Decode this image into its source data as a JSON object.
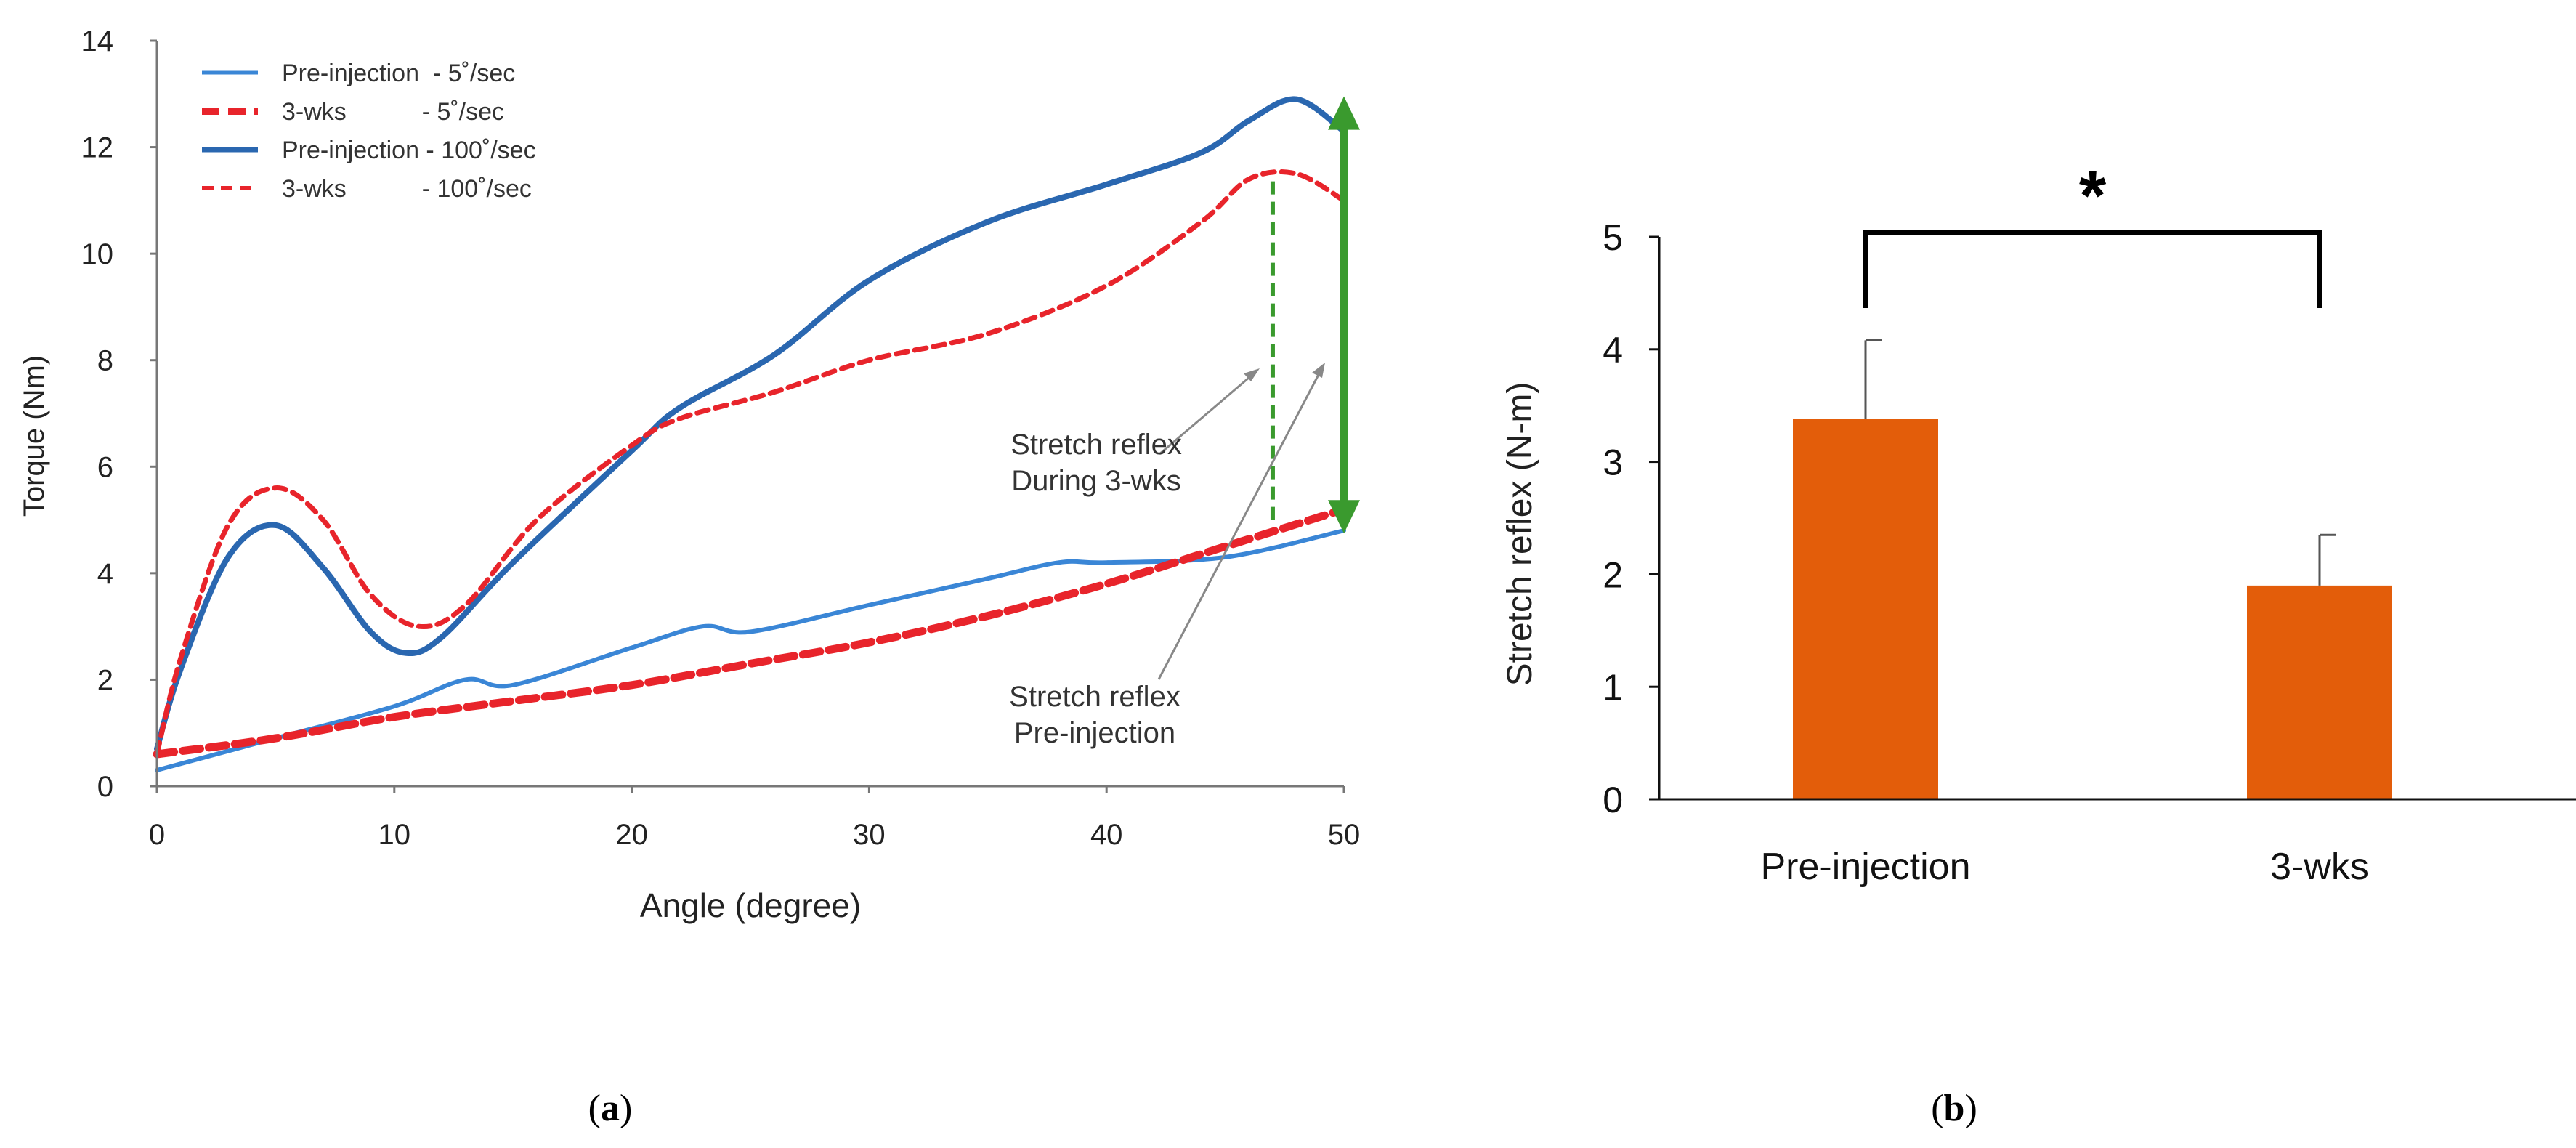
{
  "chart_data": [
    {
      "type": "line",
      "panel": "a",
      "panel_label": "(a)",
      "panel_letter": "a",
      "title": "",
      "xlabel": "Angle (degree)",
      "ylabel": "Torque (Nm)",
      "xlim": [
        0,
        50
      ],
      "ylim": [
        0,
        14
      ],
      "xticks": [
        0,
        10,
        20,
        30,
        40,
        50
      ],
      "yticks": [
        0,
        2,
        4,
        6,
        8,
        10,
        12,
        14
      ],
      "grid": false,
      "legend_position": "top-left",
      "colors": {
        "blue": "#2a67b0",
        "light_blue": "#3a86d6",
        "red": "#e8242b",
        "green": "#3a9a2e"
      },
      "series": [
        {
          "name": "Pre-injection  - 5˚/sec",
          "style": "thin-solid-blue",
          "x": [
            0,
            5,
            10,
            13,
            15,
            20,
            23,
            25,
            30,
            35,
            38,
            40,
            45,
            50
          ],
          "y": [
            0.3,
            0.9,
            1.5,
            2.0,
            1.9,
            2.6,
            3.0,
            2.9,
            3.4,
            3.9,
            4.2,
            4.2,
            4.3,
            4.8
          ]
        },
        {
          "name": "3-wks           - 5˚/sec",
          "style": "thick-dashed-red",
          "x": [
            0,
            5,
            10,
            15,
            20,
            25,
            30,
            35,
            40,
            45,
            50
          ],
          "y": [
            0.6,
            0.9,
            1.3,
            1.6,
            1.9,
            2.3,
            2.7,
            3.2,
            3.8,
            4.5,
            5.2
          ]
        },
        {
          "name": "Pre-injection - 100˚/sec",
          "style": "thick-solid-blue",
          "x": [
            0,
            1,
            3,
            5,
            7,
            9,
            10.5,
            12,
            15,
            20,
            22,
            26,
            30,
            35,
            40,
            44,
            46,
            48,
            50
          ],
          "y": [
            0.7,
            2.2,
            4.3,
            4.9,
            4.1,
            2.9,
            2.5,
            2.8,
            4.2,
            6.3,
            7.1,
            8.1,
            9.5,
            10.6,
            11.3,
            11.9,
            12.5,
            12.9,
            12.3
          ]
        },
        {
          "name": "3-wks           - 100˚/sec",
          "style": "dashed-red",
          "x": [
            0,
            1,
            3,
            5,
            7,
            9,
            11,
            13,
            16,
            20,
            22,
            26,
            30,
            35,
            40,
            44,
            46,
            48,
            50
          ],
          "y": [
            0.6,
            2.4,
            4.9,
            5.6,
            5.0,
            3.6,
            3.0,
            3.4,
            5.0,
            6.4,
            6.9,
            7.4,
            8.0,
            8.5,
            9.4,
            10.6,
            11.4,
            11.5,
            11.0
          ]
        }
      ],
      "reference_lines": [
        {
          "name": "stretch-reflex-3wks",
          "x": 47,
          "y_from": 5.0,
          "y_to": 11.5,
          "style": "dashed-green"
        },
        {
          "name": "stretch-reflex-pre-injection",
          "x": 50,
          "y_from": 4.8,
          "y_to": 12.9,
          "style": "thick-green-double-arrow"
        }
      ],
      "annotations": [
        {
          "name": "stretch-reflex-3wks",
          "lines": [
            "Stretch reflex",
            "During 3-wks"
          ],
          "points_to": [
            46.8,
            7.7
          ]
        },
        {
          "name": "stretch-reflex-pre",
          "lines": [
            "Stretch reflex",
            "Pre-injection"
          ],
          "points_to": [
            49.6,
            7.8
          ]
        }
      ]
    },
    {
      "type": "bar",
      "panel": "b",
      "panel_label": "(b)",
      "panel_letter": "b",
      "title": "",
      "xlabel": "",
      "ylabel": "Stretch reflex (N-m)",
      "ylim": [
        0,
        5
      ],
      "yticks": [
        0,
        1,
        2,
        3,
        4,
        5
      ],
      "grid": false,
      "categories": [
        "Pre-injection",
        "3-wks"
      ],
      "values": [
        3.38,
        1.9
      ],
      "errors": [
        0.7,
        0.45
      ],
      "bar_color": "#e35d0a",
      "significance": {
        "label": "*",
        "between": [
          "Pre-injection",
          "3-wks"
        ]
      }
    }
  ]
}
